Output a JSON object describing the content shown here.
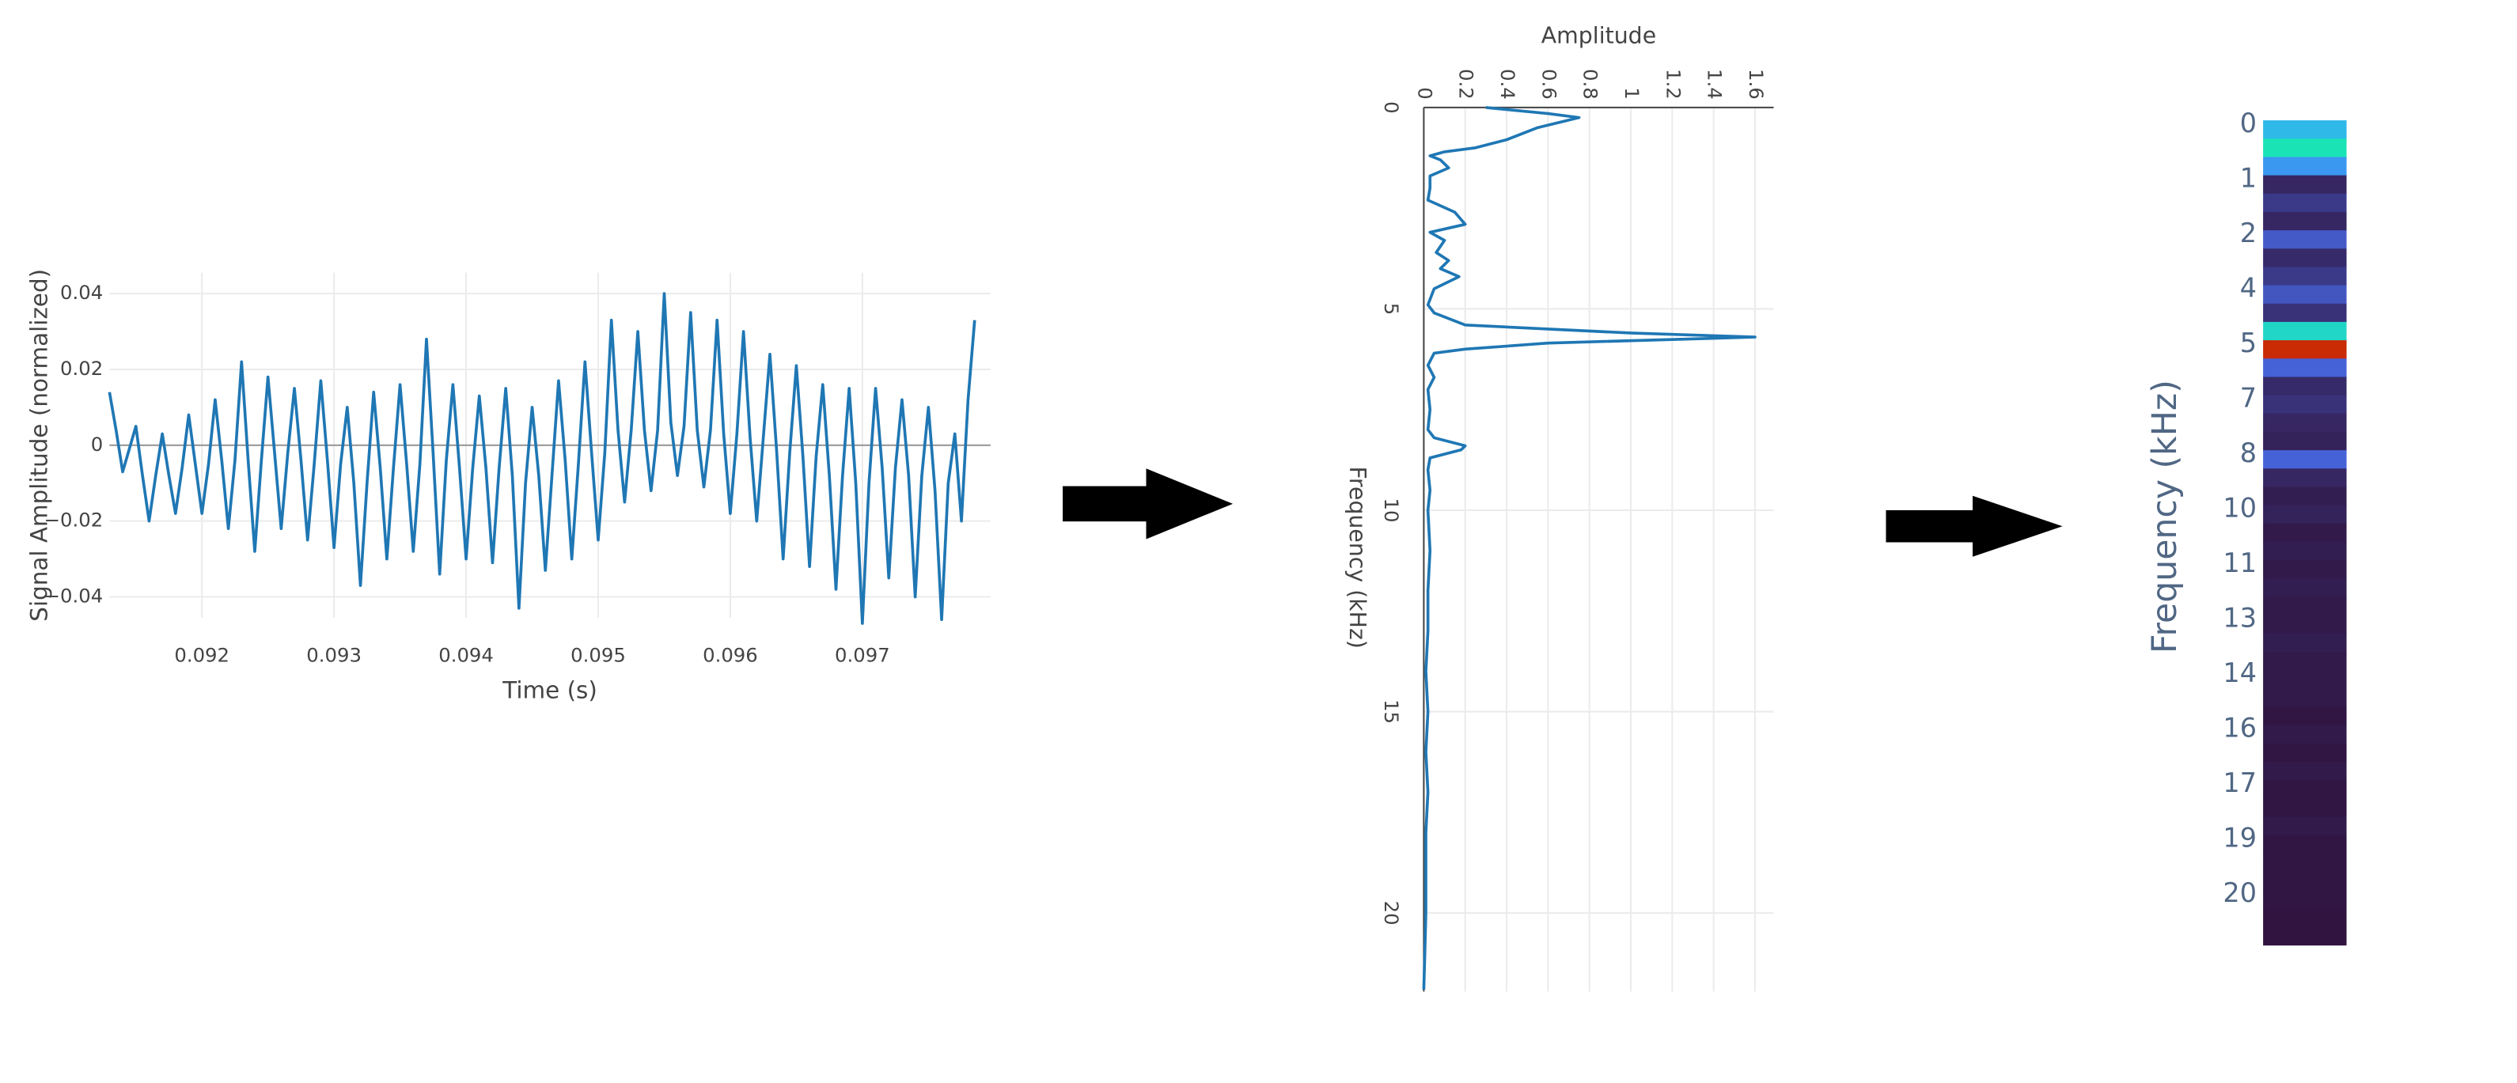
{
  "chart_data": [
    {
      "type": "line",
      "xlabel": "Time (s)",
      "ylabel": "Signal Amplitude (normalized)",
      "color": "#1f77b4",
      "grid": true,
      "zeroline": true,
      "x": [
        0.0913,
        0.09135,
        0.0914,
        0.09145,
        0.0915,
        0.09155,
        0.0916,
        0.09165,
        0.0917,
        0.09175,
        0.0918,
        0.09185,
        0.0919,
        0.09195,
        0.092,
        0.09205,
        0.0921,
        0.09215,
        0.0922,
        0.09225,
        0.0923,
        0.09235,
        0.0924,
        0.09245,
        0.0925,
        0.09255,
        0.0926,
        0.09265,
        0.0927,
        0.09275,
        0.0928,
        0.09285,
        0.0929,
        0.09295,
        0.093,
        0.09305,
        0.0931,
        0.09315,
        0.0932,
        0.09325,
        0.0933,
        0.09335,
        0.0934,
        0.09345,
        0.0935,
        0.09355,
        0.0936,
        0.09365,
        0.0937,
        0.09375,
        0.0938,
        0.09385,
        0.0939,
        0.09395,
        0.094,
        0.09405,
        0.0941,
        0.09415,
        0.0942,
        0.09425,
        0.0943,
        0.09435,
        0.0944,
        0.09445,
        0.0945,
        0.09455,
        0.0946,
        0.09465,
        0.0947,
        0.09475,
        0.0948,
        0.09485,
        0.0949,
        0.09495,
        0.095,
        0.09505,
        0.0951,
        0.09515,
        0.0952,
        0.09525,
        0.0953,
        0.09535,
        0.0954,
        0.09545,
        0.0955,
        0.09555,
        0.0956,
        0.09565,
        0.0957,
        0.09575,
        0.0958,
        0.09585,
        0.0959,
        0.09595,
        0.096,
        0.09605,
        0.0961,
        0.09615,
        0.0962,
        0.09625,
        0.0963,
        0.09635,
        0.0964,
        0.09645,
        0.0965,
        0.09655,
        0.0966,
        0.09665,
        0.0967,
        0.09675,
        0.0968,
        0.09685,
        0.0969,
        0.09695,
        0.097,
        0.09705,
        0.0971,
        0.09715,
        0.0972,
        0.09725,
        0.0973,
        0.09735,
        0.0974,
        0.09745,
        0.0975,
        0.09755,
        0.0976,
        0.09765,
        0.0977,
        0.09775,
        0.0978,
        0.09785
      ],
      "values": [
        0.014,
        0.004,
        -0.007,
        -0.001,
        0.005,
        -0.008,
        -0.02,
        -0.008,
        0.003,
        -0.008,
        -0.018,
        -0.006,
        0.008,
        -0.005,
        -0.018,
        -0.005,
        0.012,
        -0.004,
        -0.022,
        -0.004,
        0.022,
        -0.004,
        -0.028,
        -0.004,
        0.018,
        -0.002,
        -0.022,
        -0.002,
        0.015,
        -0.004,
        -0.025,
        -0.005,
        0.017,
        -0.004,
        -0.027,
        -0.005,
        0.01,
        -0.01,
        -0.037,
        -0.01,
        0.014,
        -0.006,
        -0.03,
        -0.006,
        0.016,
        -0.005,
        -0.028,
        -0.005,
        0.028,
        -0.002,
        -0.034,
        -0.004,
        0.016,
        -0.006,
        -0.03,
        -0.006,
        0.013,
        -0.006,
        -0.031,
        -0.006,
        0.015,
        -0.008,
        -0.043,
        -0.01,
        0.01,
        -0.008,
        -0.033,
        -0.008,
        0.017,
        -0.004,
        -0.03,
        -0.005,
        0.022,
        -0.002,
        -0.025,
        -0.002,
        0.033,
        0.004,
        -0.015,
        0.004,
        0.03,
        0.004,
        -0.012,
        0.004,
        0.04,
        0.006,
        -0.008,
        0.005,
        0.035,
        0.004,
        -0.011,
        0.004,
        0.033,
        0.003,
        -0.018,
        0.003,
        0.03,
        0.002,
        -0.02,
        0.002,
        0.024,
        -0.001,
        -0.03,
        -0.002,
        0.021,
        -0.003,
        -0.032,
        -0.003,
        0.016,
        -0.008,
        -0.038,
        -0.008,
        0.015,
        -0.01,
        -0.047,
        -0.01,
        0.015,
        -0.006,
        -0.035,
        -0.006,
        0.012,
        -0.008,
        -0.04,
        -0.008,
        0.01,
        -0.012,
        -0.046,
        -0.01,
        0.003,
        -0.02,
        0.012,
        0.033
      ],
      "xlim": [
        0.0913,
        0.09797
      ],
      "xticks": [
        0.092,
        0.093,
        0.094,
        0.095,
        0.096,
        0.097
      ],
      "ylim": [
        -0.0455,
        0.0455
      ],
      "yticks": [
        {
          "value": -0.04,
          "label": "−0.04"
        },
        {
          "value": -0.02,
          "label": "−0.02"
        },
        0,
        0.02,
        0.04
      ]
    },
    {
      "type": "line",
      "orientation": "vertical",
      "xlabel": "Frequency (kHz)",
      "ylabel": "Amplitude",
      "color": "#1f77b4",
      "grid": true,
      "x": [
        0,
        0.15,
        0.25,
        0.5,
        0.8,
        1.0,
        1.1,
        1.2,
        1.3,
        1.5,
        1.7,
        2.0,
        2.3,
        2.6,
        2.9,
        3.1,
        3.3,
        3.6,
        3.8,
        4.0,
        4.2,
        4.5,
        4.9,
        5.1,
        5.4,
        5.6,
        5.7,
        5.85,
        6.0,
        6.1,
        6.4,
        6.7,
        7.0,
        7.5,
        8.0,
        8.2,
        8.4,
        8.5,
        8.7,
        9.0,
        9.5,
        10,
        11,
        12,
        13,
        14,
        15,
        16,
        17,
        18,
        19,
        20,
        21,
        21.9
      ],
      "values": [
        0.3,
        0.6,
        0.75,
        0.55,
        0.4,
        0.25,
        0.1,
        0.03,
        0.08,
        0.12,
        0.03,
        0.03,
        0.02,
        0.15,
        0.2,
        0.03,
        0.1,
        0.06,
        0.12,
        0.08,
        0.17,
        0.05,
        0.02,
        0.05,
        0.2,
        1.0,
        1.6,
        0.6,
        0.2,
        0.05,
        0.02,
        0.05,
        0.02,
        0.03,
        0.02,
        0.05,
        0.2,
        0.18,
        0.03,
        0.02,
        0.03,
        0.02,
        0.03,
        0.02,
        0.02,
        0.01,
        0.02,
        0.01,
        0.02,
        0.01,
        0.01,
        0.01,
        0.005,
        0
      ],
      "xlim": [
        0,
        21.95
      ],
      "xticks": [
        0,
        5,
        10,
        15,
        20
      ],
      "ylim": [
        0,
        1.69
      ],
      "yticks": [
        0,
        0.2,
        0.4,
        0.6,
        0.8,
        1,
        1.2,
        1.4,
        1.6
      ]
    },
    {
      "type": "heatmap",
      "ylabel": "Frequency (kHz)",
      "categories": [
        "0",
        null,
        null,
        "1",
        null,
        null,
        "2",
        null,
        null,
        "4",
        null,
        null,
        "5",
        null,
        null,
        "7",
        null,
        null,
        "8",
        null,
        null,
        "10",
        null,
        null,
        "11",
        null,
        null,
        "13",
        null,
        null,
        "14",
        null,
        null,
        "16",
        null,
        null,
        "17",
        null,
        null,
        "19",
        null,
        null,
        "20",
        null,
        null
      ],
      "values": [
        0.45,
        0.6,
        0.35,
        0.05,
        0.1,
        0.05,
        0.18,
        0.06,
        0.1,
        0.17,
        0.08,
        0.55,
        1.6,
        0.2,
        0.06,
        0.08,
        0.05,
        0.04,
        0.2,
        0.05,
        0.03,
        0.04,
        0.02,
        0.03,
        0.02,
        0.03,
        0.02,
        0.02,
        0.03,
        0.02,
        0.02,
        0.02,
        0.01,
        0.02,
        0.01,
        0.02,
        0.01,
        0.01,
        0.02,
        0.01,
        0.01,
        0.01,
        0.01,
        0.005,
        0.005
      ],
      "colorscale": [
        "#30123b",
        "#4662d7",
        "#36aaf9",
        "#1ae4b6",
        "#72fe5e",
        "#c8ef34",
        "#faba39",
        "#f66b19",
        "#ca2a04"
      ],
      "zlim": [
        0,
        1.6
      ]
    }
  ]
}
